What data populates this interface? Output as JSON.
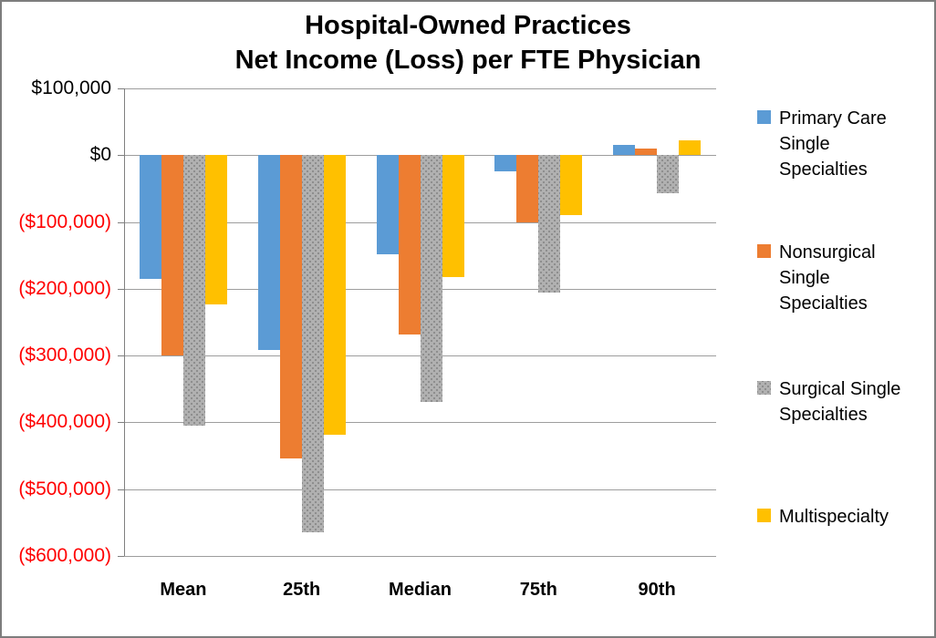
{
  "chart_data": {
    "type": "bar",
    "title": "Hospital-Owned Practices",
    "subtitle": "Net Income (Loss) per FTE Physician",
    "categories": [
      "Mean",
      "25th",
      "Median",
      "75th",
      "90th"
    ],
    "series": [
      {
        "name": "Primary Care Single Specialties",
        "legend_lines": [
          "Primary Care",
          "Single",
          "Specialties"
        ],
        "color": "#5B9BD5",
        "pattern": false,
        "values": [
          -185000,
          -292000,
          -148000,
          -24000,
          16000
        ]
      },
      {
        "name": "Nonsurgical Single Specialties",
        "legend_lines": [
          "Nonsurgical",
          "Single",
          "Specialties"
        ],
        "color": "#ED7D31",
        "pattern": false,
        "values": [
          -300000,
          -454000,
          -268000,
          -100000,
          10000
        ]
      },
      {
        "name": "Surgical Single Specialties",
        "legend_lines": [
          "Surgical Single",
          "Specialties"
        ],
        "color": "#B1B1B1",
        "pattern": true,
        "pattern_dot_color": "#8C8C8C",
        "values": [
          -405000,
          -564000,
          -370000,
          -205000,
          -57000
        ]
      },
      {
        "name": "Multispecialty",
        "legend_lines": [
          "Multispecialty"
        ],
        "color": "#FFC000",
        "pattern": false,
        "values": [
          -224000,
          -418000,
          -182000,
          -90000,
          22000
        ]
      }
    ],
    "y_axis": {
      "min": -600000,
      "max": 100000,
      "step": 100000,
      "tick_labels_top_to_bottom": [
        "$100,000",
        "$0",
        "($100,000)",
        "($200,000)",
        "($300,000)",
        "($400,000)",
        "($500,000)",
        "($600,000)"
      ],
      "positive_label_color": "#000000",
      "negative_label_color": "#FF0000"
    },
    "legend_position": "right",
    "grid": true,
    "colors": {
      "gridline": "#9D9D9D",
      "axis": "#7F7F7F",
      "background": "#FFFFFF",
      "border": "#7D7D7D"
    }
  }
}
